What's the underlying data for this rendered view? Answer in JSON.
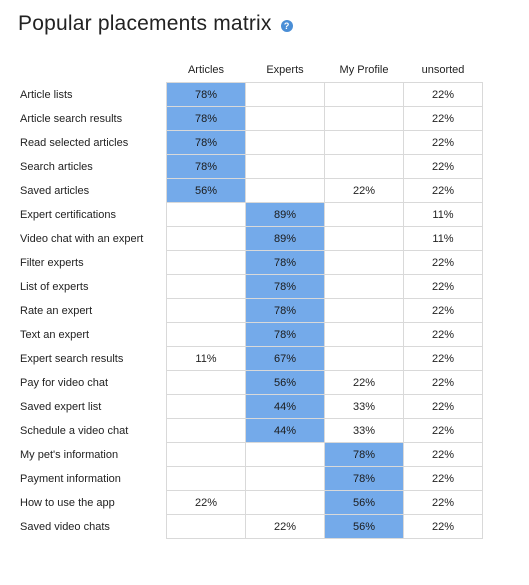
{
  "header": {
    "title": "Popular placements matrix",
    "help_icon": "question-circle-icon",
    "help_glyph": "?"
  },
  "colors": {
    "highlight": "#74aaea",
    "help": "#4a8ed6",
    "grid": "#d9d9d9"
  },
  "chart_data": {
    "type": "table",
    "title": "Popular placements matrix",
    "columns": [
      "Articles",
      "Experts",
      "My Profile",
      "unsorted"
    ],
    "rows": [
      {
        "label": "Article lists",
        "values": [
          "78%",
          "",
          "",
          "22%"
        ],
        "highlight": 0
      },
      {
        "label": "Article search results",
        "values": [
          "78%",
          "",
          "",
          "22%"
        ],
        "highlight": 0
      },
      {
        "label": "Read selected articles",
        "values": [
          "78%",
          "",
          "",
          "22%"
        ],
        "highlight": 0
      },
      {
        "label": "Search articles",
        "values": [
          "78%",
          "",
          "",
          "22%"
        ],
        "highlight": 0
      },
      {
        "label": "Saved articles",
        "values": [
          "56%",
          "",
          "22%",
          "22%"
        ],
        "highlight": 0
      },
      {
        "label": "Expert certifications",
        "values": [
          "",
          "89%",
          "",
          "11%"
        ],
        "highlight": 1
      },
      {
        "label": "Video chat with an expert",
        "values": [
          "",
          "89%",
          "",
          "11%"
        ],
        "highlight": 1
      },
      {
        "label": "Filter experts",
        "values": [
          "",
          "78%",
          "",
          "22%"
        ],
        "highlight": 1
      },
      {
        "label": "List of experts",
        "values": [
          "",
          "78%",
          "",
          "22%"
        ],
        "highlight": 1
      },
      {
        "label": "Rate an expert",
        "values": [
          "",
          "78%",
          "",
          "22%"
        ],
        "highlight": 1
      },
      {
        "label": "Text an expert",
        "values": [
          "",
          "78%",
          "",
          "22%"
        ],
        "highlight": 1
      },
      {
        "label": "Expert search results",
        "values": [
          "11%",
          "67%",
          "",
          "22%"
        ],
        "highlight": 1
      },
      {
        "label": "Pay for video chat",
        "values": [
          "",
          "56%",
          "22%",
          "22%"
        ],
        "highlight": 1
      },
      {
        "label": "Saved expert list",
        "values": [
          "",
          "44%",
          "33%",
          "22%"
        ],
        "highlight": 1
      },
      {
        "label": "Schedule a video chat",
        "values": [
          "",
          "44%",
          "33%",
          "22%"
        ],
        "highlight": 1
      },
      {
        "label": "My pet's information",
        "values": [
          "",
          "",
          "78%",
          "22%"
        ],
        "highlight": 2
      },
      {
        "label": "Payment information",
        "values": [
          "",
          "",
          "78%",
          "22%"
        ],
        "highlight": 2
      },
      {
        "label": "How to use the app",
        "values": [
          "22%",
          "",
          "56%",
          "22%"
        ],
        "highlight": 2
      },
      {
        "label": "Saved video chats",
        "values": [
          "",
          "22%",
          "56%",
          "22%"
        ],
        "highlight": 2
      }
    ]
  }
}
